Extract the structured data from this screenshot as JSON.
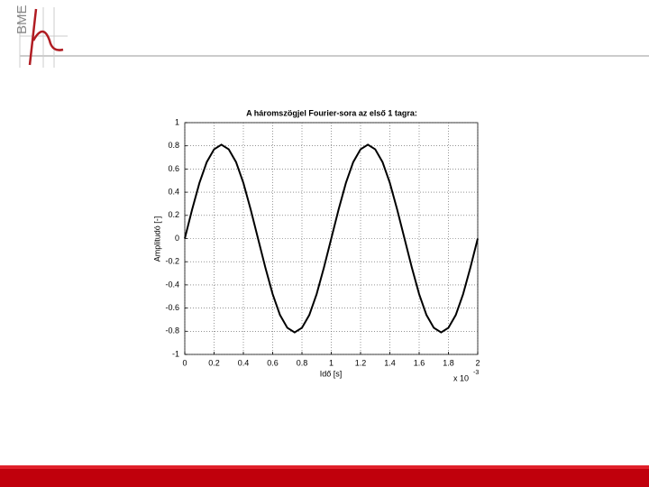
{
  "header": {
    "logo_text": "BME"
  },
  "chart_data": {
    "type": "line",
    "title": "A háromszögjel Fourier-sora az első 1 tagra:",
    "x_label": "Idő [s]",
    "y_label": "Amplitudó [-]",
    "x_multiplier": "x 10",
    "x_multiplier_exponent": "-3",
    "x": [
      0,
      0.05,
      0.1,
      0.15,
      0.2,
      0.25,
      0.3,
      0.35,
      0.4,
      0.45,
      0.5,
      0.55,
      0.6,
      0.65,
      0.7,
      0.75,
      0.8,
      0.85,
      0.9,
      0.95,
      1,
      1.05,
      1.1,
      1.15,
      1.2,
      1.25,
      1.3,
      1.35,
      1.4,
      1.45,
      1.5,
      1.55,
      1.6,
      1.65,
      1.7,
      1.75,
      1.8,
      1.85,
      1.9,
      1.95,
      2
    ],
    "series": [
      {
        "color": "#000000",
        "values": [
          0,
          0.25,
          0.48,
          0.66,
          0.77,
          0.81,
          0.77,
          0.66,
          0.48,
          0.25,
          0,
          -0.25,
          -0.48,
          -0.66,
          -0.77,
          -0.81,
          -0.77,
          -0.66,
          -0.48,
          -0.25,
          0,
          0.25,
          0.48,
          0.66,
          0.77,
          0.81,
          0.77,
          0.66,
          0.48,
          0.25,
          0,
          -0.25,
          -0.48,
          -0.66,
          -0.77,
          -0.81,
          -0.77,
          -0.66,
          -0.48,
          -0.25,
          0
        ]
      }
    ],
    "xlim": [
      0,
      2
    ],
    "ylim": [
      -1,
      1
    ],
    "xticks": [
      0,
      0.2,
      0.4,
      0.6,
      0.8,
      1,
      1.2,
      1.4,
      1.6,
      1.8,
      2
    ],
    "yticks": [
      -1,
      -0.8,
      -0.6,
      -0.4,
      -0.2,
      0,
      0.2,
      0.4,
      0.6,
      0.8,
      1
    ],
    "grid": true
  }
}
